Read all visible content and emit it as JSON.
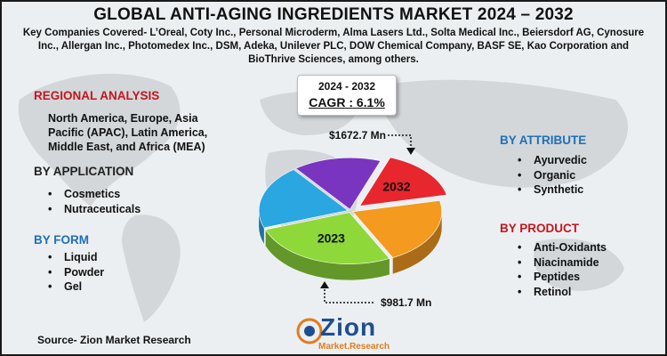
{
  "title": "GLOBAL ANTI-AGING INGREDIENTS MARKET 2024 – 2032",
  "companies": "Key Companies Covered- L’Oreal, Coty Inc., Personal Microderm, Alma Lasers Ltd., Solta Medical Inc., Beiersdorf AG, Cynosure Inc., Allergan Inc., Photomedex Inc., DSM, Adeka, Unilever PLC, DOW Chemical Company, BASF SE, Kao Corporation and BioThrive Sciences, among others.",
  "cagr": {
    "years": "2024 - 2032",
    "value": "CAGR : 6.1%"
  },
  "regional": {
    "heading": "REGIONAL ANALYSIS",
    "text": "North America, Europe, Asia Pacific (APAC), Latin America, Middle East, and Africa (MEA)"
  },
  "application": {
    "heading": "BY APPLICATION",
    "items": [
      "Cosmetics",
      "Nutraceuticals"
    ]
  },
  "form": {
    "heading": "BY FORM",
    "items": [
      "Liquid",
      "Powder",
      "Gel"
    ]
  },
  "attribute": {
    "heading": "BY ATTRIBUTE",
    "items": [
      "Ayurvedic",
      "Organic",
      "Synthetic"
    ]
  },
  "product": {
    "heading": "BY PRODUCT",
    "items": [
      "Anti-Oxidants",
      "Niacinamide",
      "Peptides",
      "Retinol"
    ]
  },
  "source": "Source- Zion Market Research",
  "logo": {
    "name": "Zion",
    "sub": "Market.Research"
  },
  "chart_data": {
    "type": "pie",
    "values": [
      {
        "year": "2023",
        "value_label": "$981.7 Mn",
        "value": 981.7
      },
      {
        "year": "2032",
        "value_label": "$1672.7 Mn",
        "value": 1672.7
      }
    ],
    "slices": [
      {
        "label": "2032",
        "color": "#e8262e",
        "share": 0.16
      },
      {
        "label": "",
        "color": "#f39a1f",
        "share": 0.21
      },
      {
        "label": "2023",
        "color": "#8ed83a",
        "share": 0.27
      },
      {
        "label": "",
        "color": "#2aa7e0",
        "share": 0.2
      },
      {
        "label": "",
        "color": "#7a35c0",
        "share": 0.16
      }
    ]
  }
}
